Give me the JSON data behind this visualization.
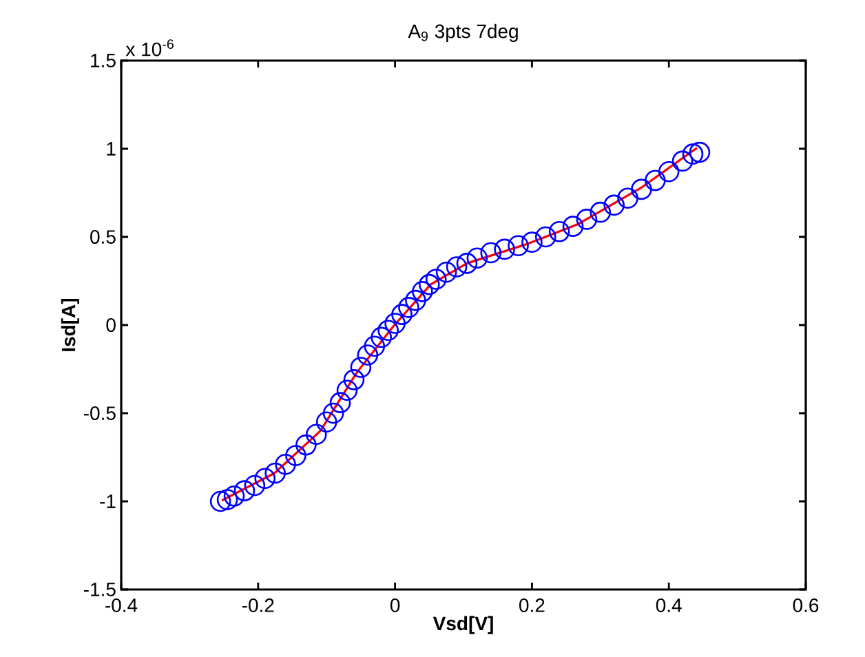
{
  "chart_data": {
    "type": "scatter",
    "title": "A$_{9}$ 3pts 7deg",
    "xlabel": "Vsd[V]",
    "ylabel": "Isd[A]",
    "annotations": [
      "x 10$^{-6}$"
    ],
    "xlim": [
      -0.4,
      0.6
    ],
    "xticks": [
      -0.4,
      -0.2,
      0,
      0.2,
      0.4,
      0.6
    ],
    "ylim": [
      -1.5,
      1.5
    ],
    "yticks": [
      -1.5,
      -1,
      -0.5,
      0,
      0.5,
      1,
      1.5
    ],
    "grid": false,
    "series": [
      {
        "type": "scatter",
        "marker": "circle",
        "color": "#0000ff",
        "x": [
          -0.255,
          -0.245,
          -0.235,
          -0.22,
          -0.205,
          -0.19,
          -0.175,
          -0.16,
          -0.145,
          -0.13,
          -0.115,
          -0.1,
          -0.09,
          -0.08,
          -0.07,
          -0.06,
          -0.05,
          -0.04,
          -0.03,
          -0.02,
          -0.01,
          0.0,
          0.01,
          0.02,
          0.03,
          0.04,
          0.05,
          0.06,
          0.075,
          0.09,
          0.105,
          0.12,
          0.14,
          0.16,
          0.18,
          0.2,
          0.22,
          0.24,
          0.26,
          0.28,
          0.3,
          0.32,
          0.34,
          0.36,
          0.38,
          0.4,
          0.42,
          0.435,
          0.445
        ],
        "values": [
          -1.0,
          -0.99,
          -0.97,
          -0.94,
          -0.91,
          -0.87,
          -0.84,
          -0.79,
          -0.74,
          -0.68,
          -0.62,
          -0.55,
          -0.5,
          -0.44,
          -0.37,
          -0.31,
          -0.24,
          -0.17,
          -0.12,
          -0.07,
          -0.03,
          0.01,
          0.06,
          0.1,
          0.14,
          0.19,
          0.23,
          0.26,
          0.3,
          0.33,
          0.35,
          0.38,
          0.41,
          0.43,
          0.45,
          0.47,
          0.5,
          0.53,
          0.56,
          0.6,
          0.64,
          0.68,
          0.72,
          0.77,
          0.82,
          0.87,
          0.93,
          0.97,
          0.98
        ]
      },
      {
        "type": "line",
        "marker": "none",
        "color": "#ff0000",
        "x": [
          -0.253,
          -0.176,
          -0.109,
          -0.056,
          -0.002,
          0.052,
          0.105,
          0.193,
          0.266,
          0.36,
          0.441
        ],
        "values": [
          -0.995,
          -0.84,
          -0.6,
          -0.27,
          -0.005,
          0.23,
          0.35,
          0.46,
          0.57,
          0.78,
          1.005
        ]
      }
    ]
  }
}
